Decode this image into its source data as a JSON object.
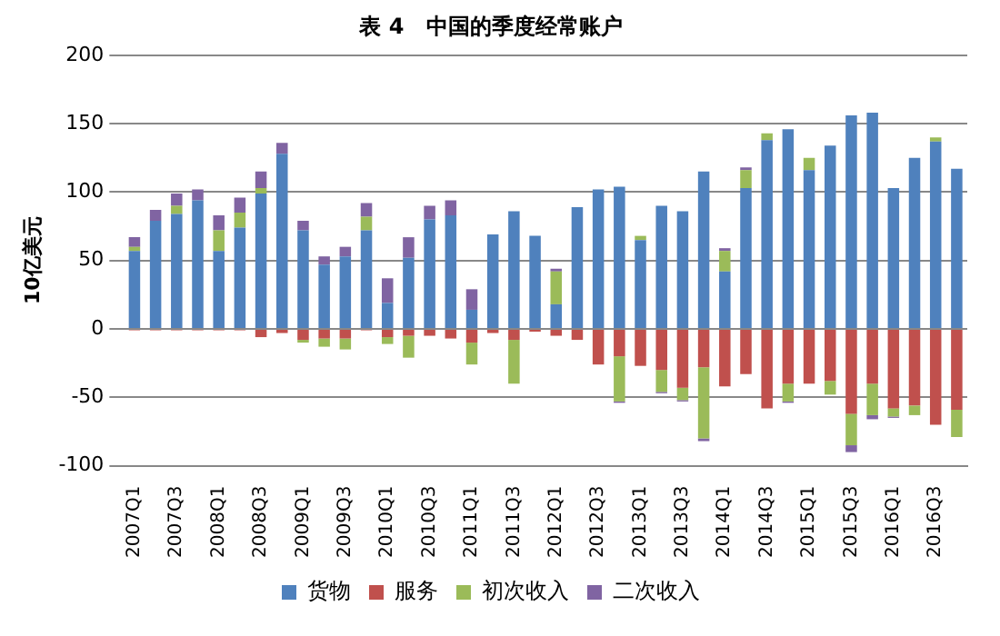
{
  "chart_data": {
    "type": "bar",
    "title": "表 4　中国的季度经常账户",
    "ylabel": "10亿美元",
    "categories": [
      "2007Q1",
      null,
      "2007Q3",
      null,
      "2008Q1",
      null,
      "2008Q3",
      null,
      "2009Q1",
      null,
      "2009Q3",
      null,
      "2010Q1",
      null,
      "2010Q3",
      null,
      "2011Q1",
      null,
      "2011Q3",
      null,
      "2012Q1",
      null,
      "2012Q3",
      null,
      "2013Q1",
      null,
      "2013Q3",
      null,
      "2014Q1",
      null,
      "2014Q3",
      null,
      "2015Q1",
      null,
      "2015Q3",
      null,
      "2016Q1",
      null,
      "2016Q3",
      null
    ],
    "stacked": true,
    "series": [
      {
        "name": "货物",
        "color": "#4f81bd",
        "values": [
          57,
          79,
          84,
          94,
          57,
          74,
          99,
          128,
          72,
          47,
          53,
          72,
          19,
          52,
          80,
          83,
          14,
          69,
          86,
          68,
          18,
          89,
          102,
          104,
          65,
          90,
          86,
          115,
          42,
          103,
          138,
          146,
          116,
          134,
          156,
          158,
          103,
          125,
          137,
          117
        ]
      },
      {
        "name": "服务",
        "color": "#c0504d",
        "values": [
          -1,
          -1,
          -1,
          -1,
          -1,
          -1,
          -6,
          -3,
          -8,
          -7,
          -7,
          -1,
          -6,
          -5,
          -5,
          -7,
          -10,
          -3,
          -8,
          -2,
          -5,
          -8,
          -26,
          -20,
          -27,
          -30,
          -43,
          -28,
          -42,
          -33,
          -58,
          -40,
          -40,
          -38,
          -62,
          -40,
          -58,
          -56,
          -70,
          -59
        ]
      },
      {
        "name": "初次收入",
        "color": "#9bbb59",
        "values": [
          3,
          0,
          6,
          0,
          15,
          11,
          4,
          0,
          -2,
          -6,
          -8,
          10,
          -5,
          -16,
          0,
          0,
          -16,
          0,
          -32,
          0,
          24,
          0,
          0,
          -33,
          3,
          -16,
          -9,
          -52,
          15,
          13,
          5,
          -13,
          9,
          -10,
          -23,
          -23,
          -6,
          -7,
          3,
          -20
        ]
      },
      {
        "name": "二次收入",
        "color": "#8064a2",
        "values": [
          7,
          8,
          9,
          8,
          11,
          11,
          12,
          8,
          7,
          6,
          7,
          10,
          18,
          15,
          10,
          11,
          15,
          0,
          0,
          0,
          2,
          0,
          0,
          -1,
          0,
          -1,
          -1,
          -2,
          2,
          2,
          0,
          -1,
          0,
          0,
          -5,
          -3,
          -1,
          0,
          0,
          0
        ]
      }
    ],
    "ylim": [
      -100,
      200
    ],
    "yticks": [
      -100,
      -50,
      0,
      50,
      100,
      150,
      200
    ],
    "grid": "y",
    "legend": "bottom"
  }
}
